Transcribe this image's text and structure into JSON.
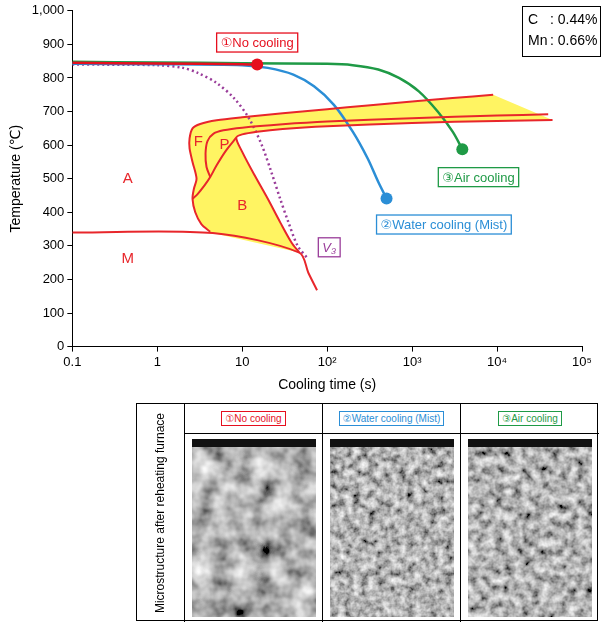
{
  "chart_data": {
    "type": "line",
    "log": "x",
    "grid": false,
    "x_label": "Cooling time (s)",
    "y_label": "Temperature (℃)",
    "xlim": [
      0.1,
      100000
    ],
    "xticks": [
      0.1,
      1,
      10,
      {
        "value": 100,
        "label": "10²"
      },
      {
        "value": 1000,
        "label": "10³"
      },
      {
        "value": 10000,
        "label": "10⁴"
      },
      {
        "value": 100000,
        "label": "10⁵"
      }
    ],
    "ylim": [
      0,
      1000
    ],
    "yticks": [
      0,
      100,
      200,
      300,
      400,
      500,
      600,
      700,
      800,
      900,
      {
        "value": 1000,
        "label": "1,000"
      }
    ],
    "composition": [
      [
        "C",
        ": 0.44%"
      ],
      [
        "Mn",
        ": 0.66%"
      ]
    ],
    "series": [
      {
        "name": "①No cooling",
        "color": "#e60f1e",
        "marker": "circle",
        "line_style": "solid",
        "x": [
          0.1,
          1,
          10,
          15
        ],
        "values": [
          845,
          843,
          841,
          840
        ]
      },
      {
        "name": "②Water cooling (Mist)",
        "color": "#2b8ed6",
        "marker": "circle",
        "line_style": "solid",
        "x": [
          0.1,
          1,
          10,
          20,
          40,
          70,
          120,
          200,
          300,
          400,
          500
        ],
        "values": [
          842,
          841,
          838,
          830,
          810,
          775,
          720,
          640,
          560,
          490,
          441
        ]
      },
      {
        "name": "③Air cooling",
        "color": "#1f9a46",
        "marker": "circle",
        "line_style": "solid",
        "x": [
          0.1,
          1,
          10,
          100,
          200,
          400,
          700,
          1200,
          2000,
          3000,
          3900
        ],
        "values": [
          848,
          846,
          844,
          842,
          838,
          825,
          800,
          760,
          700,
          640,
          588
        ]
      },
      {
        "name": "V₃",
        "color": "#9a3d9a",
        "marker": "none",
        "line_style": "dotted",
        "x": [
          0.1,
          1,
          2,
          3,
          5,
          8,
          12,
          17,
          22,
          28,
          35,
          45,
          60
        ],
        "values": [
          840,
          838,
          830,
          815,
          785,
          740,
          680,
          600,
          520,
          440,
          370,
          300,
          260
        ]
      }
    ],
    "phase_color": "#e8262b",
    "phase_lines": [
      {
        "x": [
          9000,
          3000,
          1000,
          300,
          100,
          30,
          10,
          5,
          3.2,
          2.6,
          2.4,
          2.4,
          2.6,
          2.9,
          2.7,
          2.6,
          2.8,
          3.3,
          4.2
        ],
        "values": [
          750,
          740,
          730,
          718,
          707,
          695,
          683,
          674,
          663,
          650,
          620,
          590,
          550,
          500,
          470,
          440,
          400,
          365,
          342
        ]
      },
      {
        "x": [
          40000,
          10000,
          1000,
          100,
          30,
          10,
          6,
          4.6,
          3.9,
          3.7,
          3.8,
          4.2
        ],
        "values": [
          692,
          688,
          680,
          670,
          662,
          652,
          644,
          634,
          612,
          575,
          535,
          505
        ]
      },
      {
        "x": [
          2.6,
          3.0,
          3.6,
          4.2,
          5,
          6.5,
          8.5
        ],
        "values": [
          440,
          455,
          480,
          505,
          540,
          585,
          622
        ]
      },
      {
        "x": [
          45000,
          10000,
          1000,
          100,
          30,
          15,
          10,
          8.5,
          10,
          14,
          20,
          28,
          38,
          47
        ],
        "values": [
          675,
          672,
          666,
          656,
          648,
          640,
          632,
          622,
          580,
          510,
          440,
          370,
          310,
          280
        ]
      },
      {
        "x": [
          0.1,
          4.5,
          47,
          60,
          76
        ],
        "values": [
          340,
          338,
          280,
          220,
          168
        ]
      }
    ],
    "region_color": "#fff462",
    "regions": [
      {
        "x": [
          9000,
          3000,
          1000,
          300,
          100,
          30,
          10,
          5,
          3.2,
          2.6,
          2.4,
          2.4,
          2.6,
          2.9,
          2.7,
          2.6,
          3.0,
          3.6,
          4.2,
          5,
          6.5,
          8.5,
          10,
          15,
          30,
          100,
          1000,
          10000,
          45000
        ],
        "values": [
          750,
          740,
          730,
          718,
          707,
          695,
          683,
          674,
          663,
          650,
          620,
          590,
          550,
          500,
          470,
          440,
          455,
          480,
          505,
          540,
          585,
          622,
          632,
          640,
          648,
          656,
          666,
          672,
          675
        ]
      },
      {
        "x": [
          2.6,
          3.0,
          3.6,
          4.2,
          5,
          6.5,
          8.5,
          10,
          14,
          20,
          28,
          38,
          47,
          4.5,
          4.2,
          3.3,
          2.8
        ],
        "values": [
          440,
          455,
          480,
          505,
          540,
          585,
          622,
          580,
          510,
          440,
          370,
          310,
          280,
          338,
          342,
          365,
          400
        ]
      }
    ],
    "annotations": [
      {
        "text": "A",
        "x": 0.45,
        "y": 500
      },
      {
        "text": "M",
        "x": 0.45,
        "y": 260
      },
      {
        "text": "F",
        "x": 3.05,
        "y": 610
      },
      {
        "text": "P",
        "x": 6.2,
        "y": 600
      },
      {
        "text": "B",
        "x": 10,
        "y": 420
      }
    ]
  },
  "micrograph_table": {
    "row_label": "Microstructure after reheating furnace",
    "columns": [
      "①No cooling",
      "②Water cooling (Mist)",
      "③Air cooling"
    ],
    "colors": [
      "#e60f1e",
      "#2b8ed6",
      "#1f9a46"
    ]
  }
}
